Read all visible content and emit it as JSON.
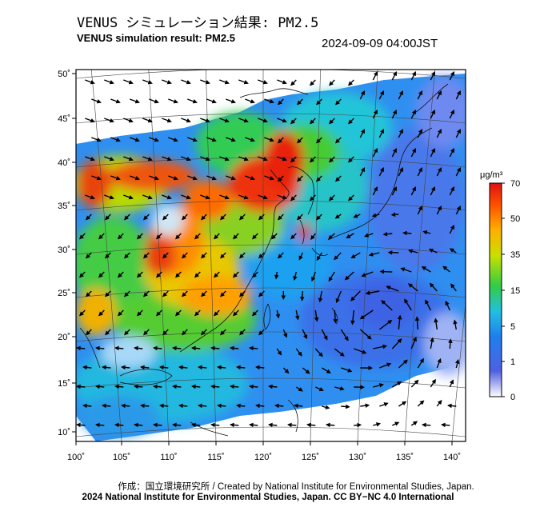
{
  "header": {
    "title_ja": "VENUS シミュレーション結果: PM2.5",
    "title_en": "VENUS simulation result: PM2.5",
    "datetime": "2024-09-09 04:00JST"
  },
  "map": {
    "variable": "PM2.5",
    "lon_ticks": [
      "100˚",
      "105˚",
      "110˚",
      "115˚",
      "120˚",
      "125˚",
      "130˚",
      "135˚",
      "140˚"
    ],
    "lat_ticks": [
      "50˚",
      "45˚",
      "40˚",
      "35˚",
      "30˚",
      "25˚",
      "20˚",
      "15˚",
      "10˚"
    ],
    "lon_range": [
      100,
      142
    ],
    "lat_range": [
      9,
      51
    ]
  },
  "colorbar": {
    "unit": "μg/m³",
    "tick_labels": [
      "0",
      "1",
      "5",
      "15",
      "35",
      "50",
      "70"
    ],
    "colors": [
      "#ffffff",
      "#3b4fe0",
      "#1e90ff",
      "#22c5d8",
      "#33cc33",
      "#e8e000",
      "#ff8c00",
      "#ee1111"
    ]
  },
  "footer": {
    "credit_line1": "作成：国立環境研究所 / Created by National Institute for Environmental Studies, Japan.",
    "credit_line2": "2024 National Institute for Environmental Studies, Japan. CC BY−NC 4.0 International"
  }
}
